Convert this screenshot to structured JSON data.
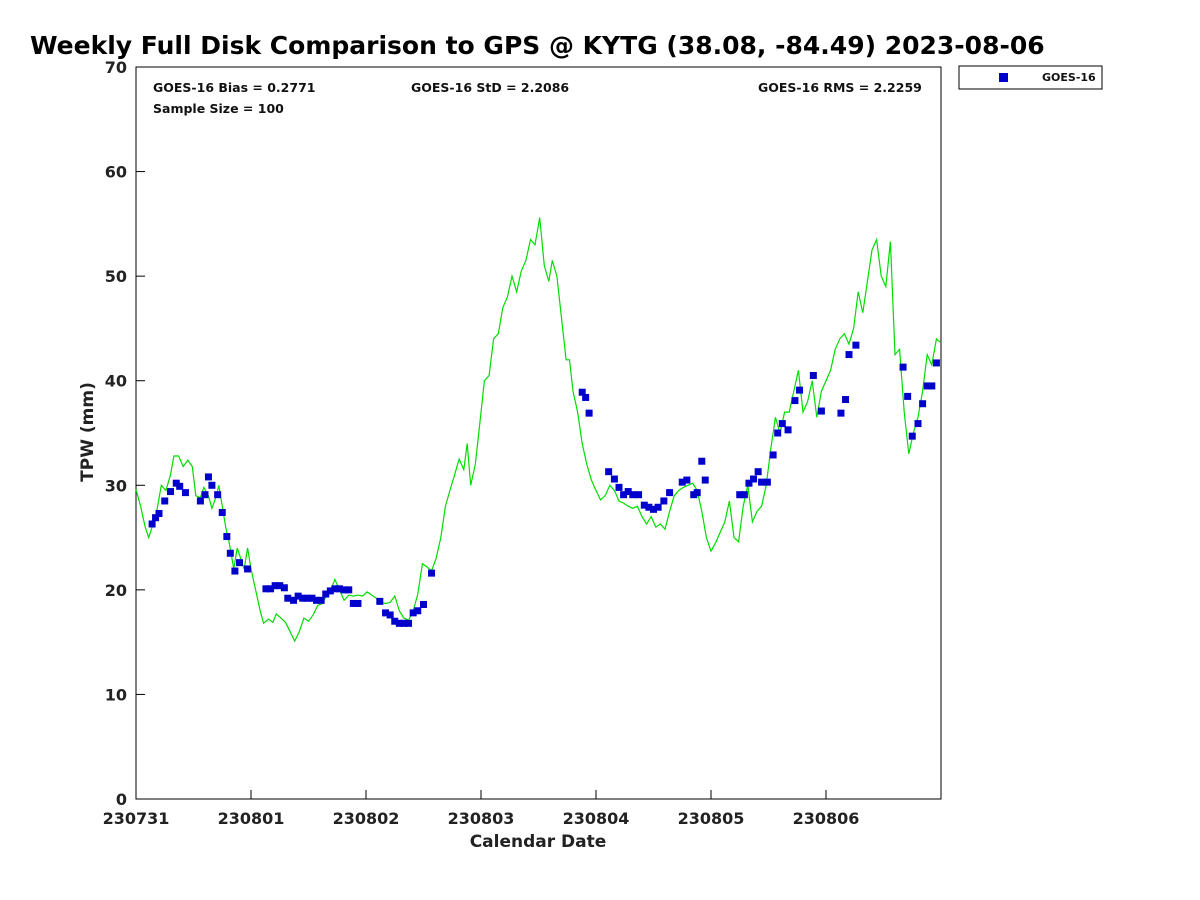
{
  "chart_data": {
    "type": "scatter",
    "title": "Weekly Full Disk Comparison to GPS @ KYTG (38.08, -84.49) 2023-08-06",
    "xlabel": "Calendar Date",
    "ylabel": "TPW (mm)",
    "xlim": [
      0,
      7
    ],
    "ylim": [
      0,
      70
    ],
    "x_ticks": [
      0,
      1,
      2,
      3,
      4,
      5,
      6
    ],
    "x_tick_labels": [
      "230731",
      "230801",
      "230802",
      "230803",
      "230804",
      "230805",
      "230806"
    ],
    "y_ticks": [
      0,
      10,
      20,
      30,
      40,
      50,
      60,
      70
    ],
    "y_tick_labels": [
      "0",
      "10",
      "20",
      "30",
      "40",
      "50",
      "60",
      "70"
    ],
    "stats": {
      "bias": "GOES-16 Bias = 0.2771",
      "std": "GOES-16 StD = 2.2086",
      "rms": "GOES-16 RMS = 2.2259",
      "sample": "Sample Size = 100"
    },
    "legend": {
      "placement": "outside-top-right",
      "entries": [
        "GOES-16"
      ]
    },
    "series": [
      {
        "name": "GOES-16",
        "color": "#0000cc",
        "marker": "square",
        "points": [
          [
            0.14,
            26.3
          ],
          [
            0.17,
            26.9
          ],
          [
            0.2,
            27.3
          ],
          [
            0.25,
            28.5
          ],
          [
            0.3,
            29.4
          ],
          [
            0.35,
            30.2
          ],
          [
            0.38,
            29.9
          ],
          [
            0.43,
            29.3
          ],
          [
            0.56,
            28.5
          ],
          [
            0.6,
            29.1
          ],
          [
            0.63,
            30.8
          ],
          [
            0.66,
            30.0
          ],
          [
            0.71,
            29.1
          ],
          [
            0.75,
            27.4
          ],
          [
            0.79,
            25.1
          ],
          [
            0.82,
            23.5
          ],
          [
            0.86,
            21.8
          ],
          [
            0.9,
            22.6
          ],
          [
            0.97,
            22.0
          ],
          [
            1.13,
            20.1
          ],
          [
            1.17,
            20.1
          ],
          [
            1.21,
            20.4
          ],
          [
            1.25,
            20.4
          ],
          [
            1.29,
            20.2
          ],
          [
            1.32,
            19.2
          ],
          [
            1.37,
            19.0
          ],
          [
            1.41,
            19.4
          ],
          [
            1.45,
            19.2
          ],
          [
            1.49,
            19.2
          ],
          [
            1.53,
            19.2
          ],
          [
            1.57,
            19.0
          ],
          [
            1.61,
            19.0
          ],
          [
            1.65,
            19.6
          ],
          [
            1.69,
            19.9
          ],
          [
            1.73,
            20.1
          ],
          [
            1.77,
            20.1
          ],
          [
            1.81,
            20.0
          ],
          [
            1.85,
            20.0
          ],
          [
            1.89,
            18.7
          ],
          [
            1.93,
            18.7
          ],
          [
            2.12,
            18.9
          ],
          [
            2.17,
            17.8
          ],
          [
            2.21,
            17.6
          ],
          [
            2.25,
            17.0
          ],
          [
            2.29,
            16.8
          ],
          [
            2.33,
            16.8
          ],
          [
            2.37,
            16.8
          ],
          [
            2.41,
            17.8
          ],
          [
            2.45,
            18.0
          ],
          [
            2.5,
            18.6
          ],
          [
            2.57,
            21.6
          ],
          [
            3.88,
            38.9
          ],
          [
            3.91,
            38.4
          ],
          [
            3.94,
            36.9
          ],
          [
            4.11,
            31.3
          ],
          [
            4.16,
            30.6
          ],
          [
            4.2,
            29.8
          ],
          [
            4.24,
            29.1
          ],
          [
            4.28,
            29.4
          ],
          [
            4.32,
            29.1
          ],
          [
            4.37,
            29.1
          ],
          [
            4.42,
            28.1
          ],
          [
            4.46,
            27.9
          ],
          [
            4.5,
            27.7
          ],
          [
            4.54,
            27.9
          ],
          [
            4.59,
            28.5
          ],
          [
            4.64,
            29.3
          ],
          [
            4.75,
            30.3
          ],
          [
            4.79,
            30.5
          ],
          [
            4.85,
            29.1
          ],
          [
            4.88,
            29.3
          ],
          [
            4.92,
            32.3
          ],
          [
            4.95,
            30.5
          ],
          [
            5.25,
            29.1
          ],
          [
            5.29,
            29.1
          ],
          [
            5.33,
            30.2
          ],
          [
            5.37,
            30.6
          ],
          [
            5.41,
            31.3
          ],
          [
            5.44,
            30.3
          ],
          [
            5.49,
            30.3
          ],
          [
            5.54,
            32.9
          ],
          [
            5.58,
            35.0
          ],
          [
            5.62,
            35.9
          ],
          [
            5.67,
            35.3
          ],
          [
            5.73,
            38.1
          ],
          [
            5.77,
            39.1
          ],
          [
            5.89,
            40.5
          ],
          [
            5.96,
            37.1
          ],
          [
            6.13,
            36.9
          ],
          [
            6.17,
            38.2
          ],
          [
            6.2,
            42.5
          ],
          [
            6.26,
            43.4
          ],
          [
            6.67,
            41.3
          ],
          [
            6.71,
            38.5
          ],
          [
            6.75,
            34.7
          ],
          [
            6.8,
            35.9
          ],
          [
            6.84,
            37.8
          ],
          [
            6.88,
            39.5
          ],
          [
            6.92,
            39.5
          ],
          [
            6.96,
            41.7
          ]
        ]
      },
      {
        "type": "line",
        "color": "#00dd00",
        "points": [
          [
            0.0,
            29.6
          ],
          [
            0.04,
            28.0
          ],
          [
            0.08,
            26.0
          ],
          [
            0.11,
            25.0
          ],
          [
            0.14,
            26.0
          ],
          [
            0.18,
            27.5
          ],
          [
            0.22,
            30.0
          ],
          [
            0.26,
            29.5
          ],
          [
            0.3,
            31.0
          ],
          [
            0.33,
            32.8
          ],
          [
            0.37,
            32.8
          ],
          [
            0.41,
            31.8
          ],
          [
            0.45,
            32.4
          ],
          [
            0.49,
            31.8
          ],
          [
            0.52,
            29.0
          ],
          [
            0.56,
            28.8
          ],
          [
            0.59,
            29.8
          ],
          [
            0.63,
            29.0
          ],
          [
            0.66,
            27.8
          ],
          [
            0.7,
            29.0
          ],
          [
            0.72,
            30.0
          ],
          [
            0.75,
            28.0
          ],
          [
            0.78,
            26.0
          ],
          [
            0.81,
            24.5
          ],
          [
            0.85,
            22.0
          ],
          [
            0.88,
            24.0
          ],
          [
            0.91,
            23.0
          ],
          [
            0.94,
            22.0
          ],
          [
            0.97,
            24.0
          ],
          [
            1.0,
            22.0
          ],
          [
            1.04,
            20.0
          ],
          [
            1.08,
            18.0
          ],
          [
            1.11,
            16.8
          ],
          [
            1.15,
            17.2
          ],
          [
            1.19,
            16.9
          ],
          [
            1.22,
            17.7
          ],
          [
            1.26,
            17.3
          ],
          [
            1.3,
            16.9
          ],
          [
            1.34,
            16.0
          ],
          [
            1.38,
            15.1
          ],
          [
            1.42,
            16.0
          ],
          [
            1.46,
            17.3
          ],
          [
            1.5,
            17.0
          ],
          [
            1.54,
            17.6
          ],
          [
            1.58,
            18.5
          ],
          [
            1.62,
            18.7
          ],
          [
            1.66,
            19.5
          ],
          [
            1.7,
            20.2
          ],
          [
            1.73,
            21.0
          ],
          [
            1.77,
            20.0
          ],
          [
            1.81,
            19.0
          ],
          [
            1.85,
            19.5
          ],
          [
            1.89,
            19.4
          ],
          [
            1.93,
            19.5
          ],
          [
            1.97,
            19.4
          ],
          [
            2.01,
            19.8
          ],
          [
            2.05,
            19.5
          ],
          [
            2.09,
            19.2
          ],
          [
            2.13,
            18.8
          ],
          [
            2.17,
            18.7
          ],
          [
            2.21,
            18.8
          ],
          [
            2.25,
            19.4
          ],
          [
            2.29,
            18.0
          ],
          [
            2.33,
            17.3
          ],
          [
            2.37,
            17.1
          ],
          [
            2.41,
            18.0
          ],
          [
            2.45,
            19.6
          ],
          [
            2.49,
            22.5
          ],
          [
            2.53,
            22.2
          ],
          [
            2.57,
            21.8
          ],
          [
            2.61,
            23.0
          ],
          [
            2.65,
            25.0
          ],
          [
            2.69,
            28.0
          ],
          [
            2.73,
            29.5
          ],
          [
            2.77,
            31.0
          ],
          [
            2.81,
            32.5
          ],
          [
            2.85,
            31.5
          ],
          [
            2.88,
            34.0
          ],
          [
            2.91,
            30.0
          ],
          [
            2.95,
            32.0
          ],
          [
            2.99,
            36.0
          ],
          [
            3.03,
            40.0
          ],
          [
            3.07,
            40.5
          ],
          [
            3.11,
            44.0
          ],
          [
            3.15,
            44.5
          ],
          [
            3.19,
            47.0
          ],
          [
            3.23,
            48.0
          ],
          [
            3.27,
            50.0
          ],
          [
            3.31,
            48.5
          ],
          [
            3.35,
            50.5
          ],
          [
            3.39,
            51.5
          ],
          [
            3.43,
            53.5
          ],
          [
            3.47,
            53.0
          ],
          [
            3.51,
            55.6
          ],
          [
            3.55,
            51.0
          ],
          [
            3.59,
            49.5
          ],
          [
            3.62,
            51.5
          ],
          [
            3.66,
            50.0
          ],
          [
            3.7,
            46.0
          ],
          [
            3.74,
            42.0
          ],
          [
            3.77,
            42.0
          ],
          [
            3.8,
            39.0
          ],
          [
            3.84,
            37.0
          ],
          [
            3.88,
            34.0
          ],
          [
            3.92,
            32.0
          ],
          [
            3.96,
            30.5
          ],
          [
            4.0,
            29.5
          ],
          [
            4.04,
            28.6
          ],
          [
            4.08,
            29.0
          ],
          [
            4.12,
            30.0
          ],
          [
            4.16,
            29.5
          ],
          [
            4.2,
            28.5
          ],
          [
            4.24,
            28.3
          ],
          [
            4.28,
            28.0
          ],
          [
            4.32,
            27.8
          ],
          [
            4.36,
            28.0
          ],
          [
            4.4,
            27.0
          ],
          [
            4.44,
            26.3
          ],
          [
            4.48,
            27.0
          ],
          [
            4.52,
            26.0
          ],
          [
            4.56,
            26.3
          ],
          [
            4.6,
            25.8
          ],
          [
            4.64,
            27.5
          ],
          [
            4.68,
            29.0
          ],
          [
            4.72,
            29.5
          ],
          [
            4.76,
            29.8
          ],
          [
            4.8,
            30.0
          ],
          [
            4.84,
            30.2
          ],
          [
            4.88,
            29.5
          ],
          [
            4.92,
            27.5
          ],
          [
            4.96,
            25.0
          ],
          [
            5.0,
            23.7
          ],
          [
            5.04,
            24.5
          ],
          [
            5.08,
            25.5
          ],
          [
            5.12,
            26.5
          ],
          [
            5.16,
            28.5
          ],
          [
            5.2,
            25.0
          ],
          [
            5.24,
            24.6
          ],
          [
            5.28,
            28.0
          ],
          [
            5.32,
            30.0
          ],
          [
            5.36,
            26.5
          ],
          [
            5.4,
            27.5
          ],
          [
            5.44,
            28.0
          ],
          [
            5.48,
            30.0
          ],
          [
            5.52,
            33.5
          ],
          [
            5.56,
            36.5
          ],
          [
            5.6,
            35.0
          ],
          [
            5.64,
            37.0
          ],
          [
            5.68,
            37.0
          ],
          [
            5.72,
            39.0
          ],
          [
            5.76,
            41.0
          ],
          [
            5.8,
            37.0
          ],
          [
            5.84,
            38.0
          ],
          [
            5.88,
            40.0
          ],
          [
            5.92,
            36.5
          ],
          [
            5.96,
            39.0
          ],
          [
            6.0,
            40.0
          ],
          [
            6.04,
            41.0
          ],
          [
            6.08,
            43.0
          ],
          [
            6.12,
            44.0
          ],
          [
            6.16,
            44.5
          ],
          [
            6.2,
            43.5
          ],
          [
            6.24,
            45.0
          ],
          [
            6.28,
            48.5
          ],
          [
            6.32,
            46.5
          ],
          [
            6.36,
            49.5
          ],
          [
            6.4,
            52.5
          ],
          [
            6.44,
            53.5
          ],
          [
            6.48,
            50.0
          ],
          [
            6.52,
            49.0
          ],
          [
            6.56,
            53.3
          ],
          [
            6.6,
            42.5
          ],
          [
            6.64,
            43.0
          ],
          [
            6.68,
            37.0
          ],
          [
            6.72,
            33.0
          ],
          [
            6.76,
            35.0
          ],
          [
            6.8,
            36.5
          ],
          [
            6.84,
            39.0
          ],
          [
            6.88,
            42.5
          ],
          [
            6.92,
            41.5
          ],
          [
            6.96,
            44.0
          ],
          [
            6.99,
            43.7
          ]
        ]
      }
    ]
  }
}
